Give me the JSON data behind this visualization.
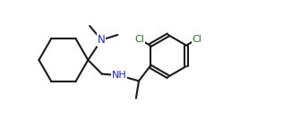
{
  "background_color": "#ffffff",
  "line_color": "#1a1a1a",
  "N_color": "#2020bb",
  "Cl_color": "#2a6e2a",
  "line_width": 1.5,
  "figsize": [
    3.35,
    1.34
  ],
  "dpi": 100,
  "xlim": [
    -0.3,
    10.2
  ],
  "ylim": [
    0.0,
    4.3
  ]
}
